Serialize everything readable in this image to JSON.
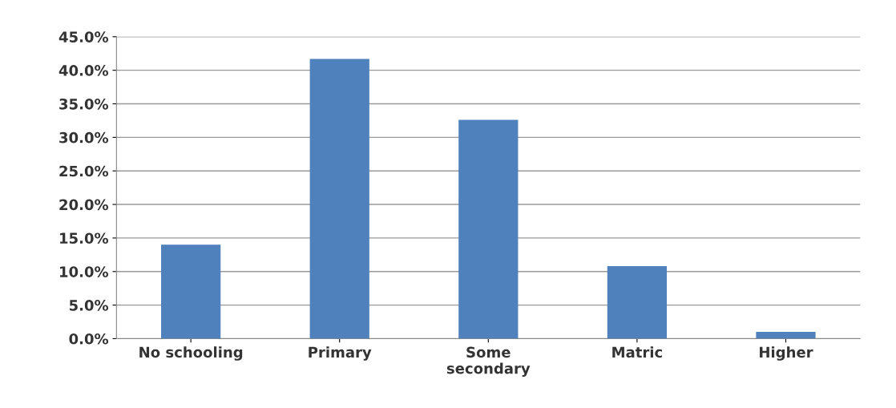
{
  "chart_data": {
    "type": "bar",
    "categories": [
      "No schooling",
      "Primary",
      "Some\nsecondary",
      "Matric",
      "Higher"
    ],
    "values": [
      14.0,
      41.7,
      32.6,
      10.8,
      1.0
    ],
    "color": "#4f81bd",
    "ylim": [
      0,
      45
    ],
    "yticks": [
      {
        "value": 0,
        "label": "0.0%"
      },
      {
        "value": 5,
        "label": "5.0%"
      },
      {
        "value": 10,
        "label": "10.0%"
      },
      {
        "value": 15,
        "label": "15.0%"
      },
      {
        "value": 20,
        "label": "20.0%"
      },
      {
        "value": 25,
        "label": "25.0%"
      },
      {
        "value": 30,
        "label": "30.0%"
      },
      {
        "value": 35,
        "label": "35.0%"
      },
      {
        "value": 40,
        "label": "40.0%"
      },
      {
        "value": 45,
        "label": "45.0%"
      }
    ],
    "grid": "y",
    "legend": false
  }
}
